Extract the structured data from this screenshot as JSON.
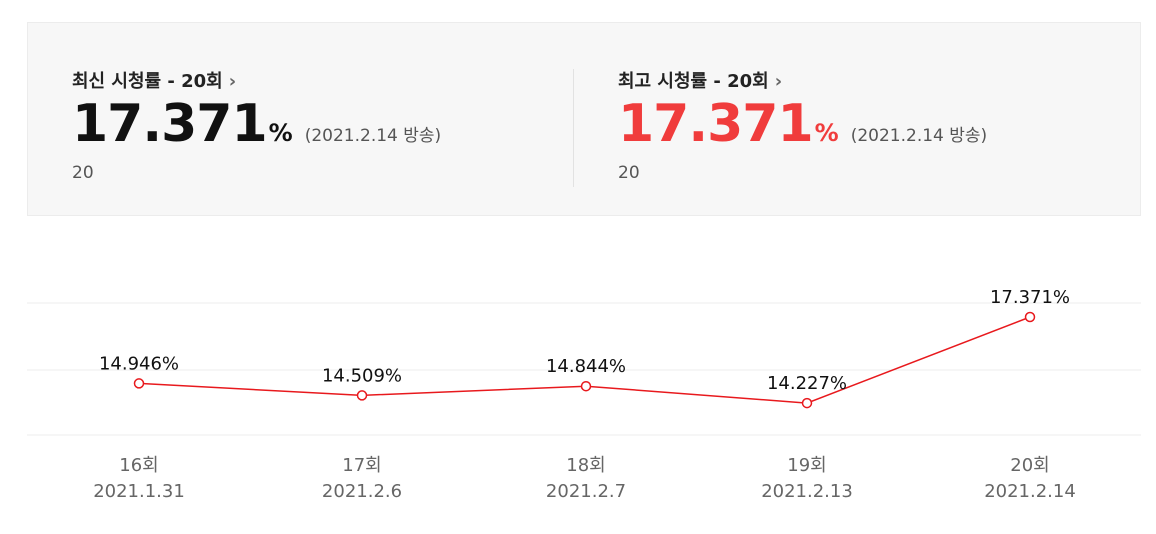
{
  "summary": {
    "latest": {
      "title": "최신 시청률 - 20회",
      "value": "17.371",
      "unit": "%",
      "date": "(2021.2.14 방송)",
      "sub": "20"
    },
    "best": {
      "title": "최고 시청률 - 20회",
      "value": "17.371",
      "unit": "%",
      "date": "(2021.2.14 방송)",
      "sub": "20"
    },
    "chevron_icon": "chevron-right-icon",
    "accent_color": "#f03c3c"
  },
  "chart_data": {
    "type": "line",
    "categories": [
      "16회",
      "17회",
      "18회",
      "19회",
      "20회"
    ],
    "dates": [
      "2021.1.31",
      "2021.2.6",
      "2021.2.7",
      "2021.2.13",
      "2021.2.14"
    ],
    "series": [
      {
        "values": [
          14.946,
          14.509,
          14.844,
          14.227,
          17.371
        ],
        "color": "#e8191d"
      }
    ],
    "data_labels": [
      "14.946%",
      "14.509%",
      "14.844%",
      "14.227%",
      "17.371%"
    ],
    "grid": true,
    "ylim": [
      13.5,
      17.7
    ]
  }
}
